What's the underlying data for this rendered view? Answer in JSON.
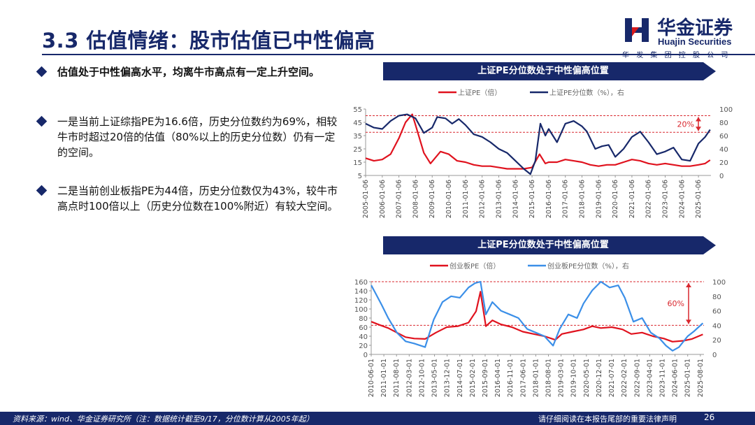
{
  "header": {
    "title": "3.3 估值情绪：股市估值已中性偏高",
    "logo_cn": "华金证券",
    "logo_en": "Huajin Securities",
    "logo_sub": "华发集团控股公司",
    "colors": {
      "brand_navy": "#17286a",
      "logo_red": "#d7191c"
    }
  },
  "bullets": [
    {
      "text": "估值处于中性偏高水平，均离牛市高点有一定上升空间。"
    },
    {
      "text": "一是当前上证综指PE为16.6倍，历史分位数约为69%，相较牛市时超过20倍的估值（80%以上的历史分位数）仍有一定的空间。"
    },
    {
      "text": "二是当前创业板指PE为44倍，历史分位数仅为43%，较牛市高点时100倍以上（历史分位数在100%附近）有较大空间。"
    }
  ],
  "chart_data": [
    {
      "type": "line",
      "title": "上证PE分位数处于中性偏高位置",
      "legend": [
        "上证PE（倍）",
        "上证PE分位数（%），右"
      ],
      "x_ticks": [
        "2005-01-06",
        "2006-01-06",
        "2007-01-06",
        "2008-01-06",
        "2009-01-06",
        "2010-01-06",
        "2011-01-06",
        "2012-01-06",
        "2013-01-06",
        "2014-01-06",
        "2015-01-06",
        "2016-01-06",
        "2017-01-06",
        "2018-01-06",
        "2019-01-06",
        "2020-01-06",
        "2021-01-06",
        "2022-01-06",
        "2023-01-06",
        "2024-01-06",
        "2025-01-06"
      ],
      "y_ticks_left": [
        5,
        15,
        25,
        35,
        45,
        55
      ],
      "y_ticks_right": [
        0,
        20,
        40,
        60,
        80,
        100
      ],
      "ylim": [
        5,
        55
      ],
      "y2lim": [
        0,
        100
      ],
      "annotation": "20%",
      "series": [
        {
          "name": "上证PE（倍）",
          "color": "#e0121e",
          "axis": "left",
          "x": [
            2005.0,
            2005.5,
            2006.0,
            2006.5,
            2007.0,
            2007.4,
            2007.8,
            2008.0,
            2008.5,
            2008.9,
            2009.5,
            2010.0,
            2010.5,
            2011.0,
            2011.5,
            2012.0,
            2012.5,
            2013.0,
            2013.5,
            2014.0,
            2014.5,
            2015.0,
            2015.45,
            2015.8,
            2016.0,
            2016.5,
            2017.0,
            2017.5,
            2018.0,
            2018.5,
            2019.0,
            2019.5,
            2020.0,
            2020.5,
            2021.0,
            2021.5,
            2022.0,
            2022.5,
            2023.0,
            2023.5,
            2024.0,
            2024.5,
            2025.0,
            2025.4,
            2025.7
          ],
          "values": [
            18,
            16,
            17,
            21,
            33,
            45,
            51,
            43,
            22,
            14,
            23,
            21,
            16,
            15,
            13,
            12,
            12,
            11,
            10,
            10,
            10,
            11,
            21,
            14,
            15,
            15,
            17,
            16,
            15,
            13,
            12,
            13,
            13,
            15,
            17,
            16,
            14,
            13,
            14,
            13,
            12,
            12,
            13,
            14,
            16.6
          ]
        },
        {
          "name": "上证PE分位数（%），右",
          "color": "#17286a",
          "axis": "right",
          "x": [
            2005.0,
            2005.5,
            2006.0,
            2006.5,
            2007.0,
            2007.5,
            2008.0,
            2008.5,
            2009.0,
            2009.3,
            2009.8,
            2010.2,
            2010.6,
            2011.0,
            2011.5,
            2012.0,
            2012.5,
            2013.0,
            2013.5,
            2014.0,
            2014.5,
            2014.9,
            2015.2,
            2015.5,
            2015.8,
            2016.0,
            2016.5,
            2017.0,
            2017.5,
            2018.0,
            2018.3,
            2018.8,
            2019.2,
            2019.6,
            2020.0,
            2020.5,
            2021.0,
            2021.5,
            2022.0,
            2022.5,
            2023.0,
            2023.5,
            2024.0,
            2024.5,
            2025.0,
            2025.4,
            2025.7
          ],
          "values": [
            78,
            72,
            70,
            82,
            90,
            92,
            86,
            64,
            72,
            88,
            86,
            78,
            85,
            76,
            62,
            58,
            50,
            40,
            34,
            22,
            10,
            2,
            22,
            78,
            60,
            70,
            50,
            78,
            82,
            74,
            66,
            40,
            44,
            46,
            28,
            40,
            58,
            66,
            50,
            32,
            36,
            42,
            24,
            22,
            48,
            58,
            69
          ]
        }
      ]
    },
    {
      "type": "line",
      "title": "上证PE分位数处于中性偏高位置",
      "legend": [
        "创业板PE（倍）",
        "创业板PE分位数（%），右"
      ],
      "x_ticks": [
        "2010-06-01",
        "2011-01-01",
        "2011-08-01",
        "2012-03-01",
        "2012-10-01",
        "2013-05-01",
        "2013-12-01",
        "2014-07-01",
        "2015-02-01",
        "2015-09-01",
        "2016-04-01",
        "2016-11-01",
        "2017-06-01",
        "2018-01-01",
        "2018-08-01",
        "2019-03-01",
        "2019-10-01",
        "2020-05-01",
        "2020-12-01",
        "2021-07-01",
        "2022-02-01",
        "2022-09-01",
        "2023-04-01",
        "2023-11-01",
        "2024-06-01",
        "2025-01-01",
        "2025-08-01"
      ],
      "y_ticks_left": [
        0,
        20,
        40,
        60,
        80,
        100,
        120,
        140,
        160
      ],
      "y_ticks_right": [
        0,
        20,
        40,
        60,
        80,
        100
      ],
      "ylim": [
        0,
        160
      ],
      "y2lim": [
        0,
        100
      ],
      "annotation": "60%",
      "series": [
        {
          "name": "创业板PE（倍）",
          "color": "#e0121e",
          "axis": "left",
          "x": [
            2010.42,
            2010.8,
            2011.2,
            2011.6,
            2012.0,
            2012.4,
            2012.9,
            2013.4,
            2013.9,
            2014.4,
            2014.9,
            2015.25,
            2015.45,
            2015.7,
            2016.0,
            2016.4,
            2016.9,
            2017.4,
            2017.9,
            2018.4,
            2018.9,
            2019.2,
            2019.7,
            2020.2,
            2020.6,
            2021.0,
            2021.5,
            2022.0,
            2022.4,
            2022.9,
            2023.4,
            2023.9,
            2024.3,
            2024.8,
            2025.2,
            2025.7
          ],
          "values": [
            72,
            65,
            58,
            48,
            38,
            35,
            34,
            48,
            60,
            62,
            70,
            95,
            138,
            62,
            75,
            66,
            60,
            50,
            45,
            40,
            32,
            45,
            50,
            55,
            62,
            58,
            60,
            55,
            45,
            48,
            40,
            35,
            28,
            30,
            34,
            44
          ]
        },
        {
          "name": "创业板PE分位数（%），右",
          "color": "#3b8fe8",
          "axis": "right",
          "x": [
            2010.42,
            2010.6,
            2010.9,
            2011.2,
            2011.6,
            2012.0,
            2012.4,
            2012.9,
            2013.3,
            2013.7,
            2014.1,
            2014.5,
            2014.9,
            2015.2,
            2015.45,
            2015.7,
            2016.0,
            2016.4,
            2016.8,
            2017.2,
            2017.6,
            2018.0,
            2018.4,
            2018.8,
            2019.1,
            2019.5,
            2019.9,
            2020.2,
            2020.6,
            2021.0,
            2021.4,
            2021.8,
            2022.1,
            2022.5,
            2022.9,
            2023.3,
            2023.7,
            2024.0,
            2024.3,
            2024.6,
            2025.0,
            2025.3,
            2025.7
          ],
          "values": [
            95,
            85,
            68,
            50,
            30,
            18,
            15,
            10,
            48,
            72,
            80,
            78,
            92,
            98,
            100,
            55,
            72,
            60,
            55,
            50,
            35,
            30,
            25,
            12,
            35,
            55,
            50,
            70,
            88,
            100,
            92,
            95,
            78,
            45,
            50,
            30,
            22,
            12,
            5,
            10,
            25,
            32,
            43
          ]
        }
      ]
    }
  ],
  "footer": {
    "source": "资料来源：wind、华金证券研究所（注：数据统计截至9/17，分位数计算从2005年起）",
    "disclaimer": "请仔细阅读在本报告尾部的重要法律声明",
    "page": "26"
  }
}
